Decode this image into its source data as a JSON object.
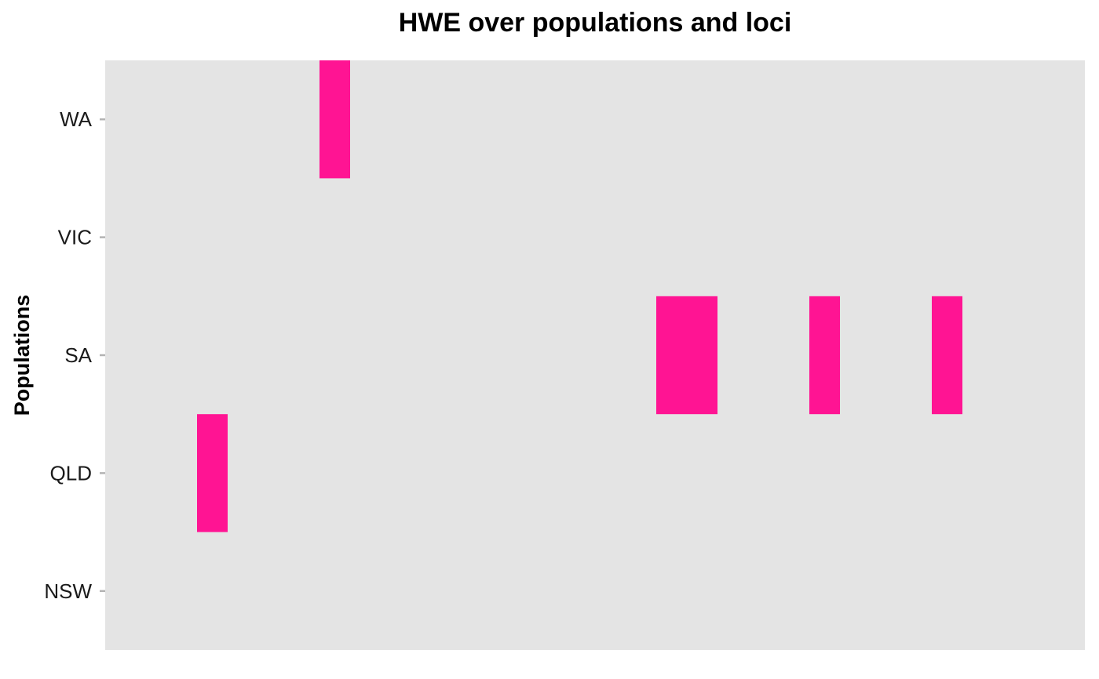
{
  "chart_data": {
    "type": "heatmap",
    "title": "HWE over populations and loci",
    "xlabel": "",
    "ylabel": "Populations",
    "populations": [
      "NSW",
      "QLD",
      "SA",
      "VIC",
      "WA"
    ],
    "loci_count": 32,
    "cells": [
      {
        "population": "WA",
        "locus_index": 8
      },
      {
        "population": "QLD",
        "locus_index": 4
      },
      {
        "population": "SA",
        "locus_index": 19
      },
      {
        "population": "SA",
        "locus_index": 20
      },
      {
        "population": "SA",
        "locus_index": 24
      },
      {
        "population": "SA",
        "locus_index": 28
      }
    ],
    "colors": {
      "panel": "#e4e4e4",
      "cell": "#ff1493",
      "tick": "#b3b3b3"
    },
    "grid": false,
    "legend": "none"
  }
}
